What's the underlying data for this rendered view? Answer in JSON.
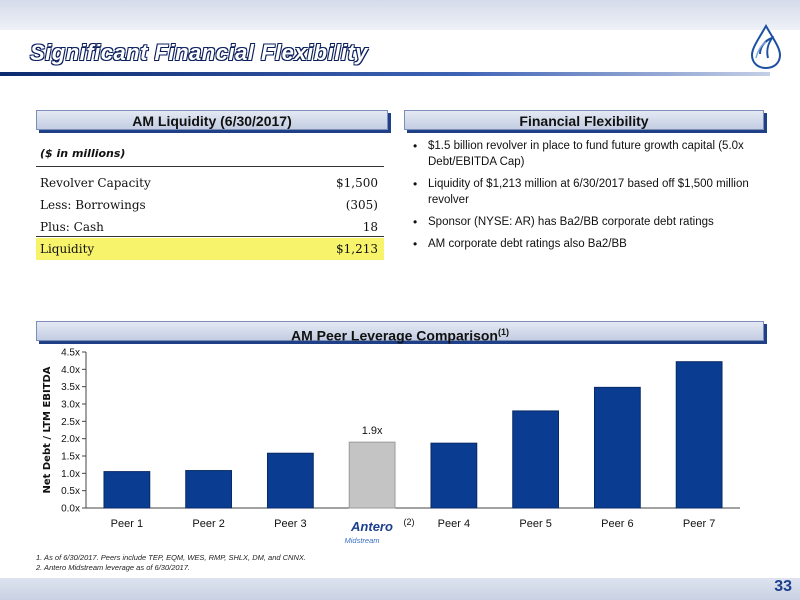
{
  "slide": {
    "title": "Significant Financial Flexibility",
    "page_number": "33"
  },
  "liquidity": {
    "header": "AM Liquidity (6/30/2017)",
    "unit": "($ in millions)",
    "rows": [
      {
        "label": "Revolver Capacity",
        "value": "$1,500"
      },
      {
        "label": "Less: Borrowings",
        "value": "(305)"
      },
      {
        "label": "Plus: Cash",
        "value": "18"
      }
    ],
    "total": {
      "label": "Liquidity",
      "value": "$1,213"
    }
  },
  "flexibility": {
    "header": "Financial Flexibility",
    "bullets": [
      "$1.5 billion revolver in place to fund future growth capital (5.0x Debt/EBITDA Cap)",
      "Liquidity of $1,213 million at 6/30/2017 based off $1,500 million revolver",
      "Sponsor (NYSE: AR) has Ba2/BB corporate debt ratings",
      "AM corporate debt ratings also Ba2/BB"
    ]
  },
  "peer_chart": {
    "header": "AM Peer Leverage Comparison",
    "header_sup": "(1)",
    "logo_text": "Antero",
    "logo_subtext": "Midstream",
    "logo_note": "(2)"
  },
  "chart_data": {
    "type": "bar",
    "categories": [
      "Peer 1",
      "Peer 2",
      "Peer 3",
      "",
      "Peer 4",
      "Peer 5",
      "Peer 6",
      "Peer 7"
    ],
    "values": [
      1.05,
      1.08,
      1.58,
      1.9,
      1.87,
      2.8,
      3.48,
      4.22
    ],
    "highlight_index": 3,
    "data_labels": [
      "",
      "",
      "",
      "1.9x",
      "",
      "",
      "",
      ""
    ],
    "ylabel": "Net Debt / LTM EBITDA",
    "ylim": [
      0,
      4.5
    ],
    "yticks": [
      "0.0x",
      "0.5x",
      "1.0x",
      "1.5x",
      "2.0x",
      "2.5x",
      "3.0x",
      "3.5x",
      "4.0x",
      "4.5x"
    ],
    "colors": {
      "bar": "#0a3d91",
      "highlight": "#c4c4c4"
    }
  },
  "footnotes": [
    "1.  As of 6/30/2017.  Peers include TEP, EQM, WES, RMP, SHLX, DM, and CNNX.",
    "2.  Antero Midstream leverage as of 6/30/2017."
  ]
}
